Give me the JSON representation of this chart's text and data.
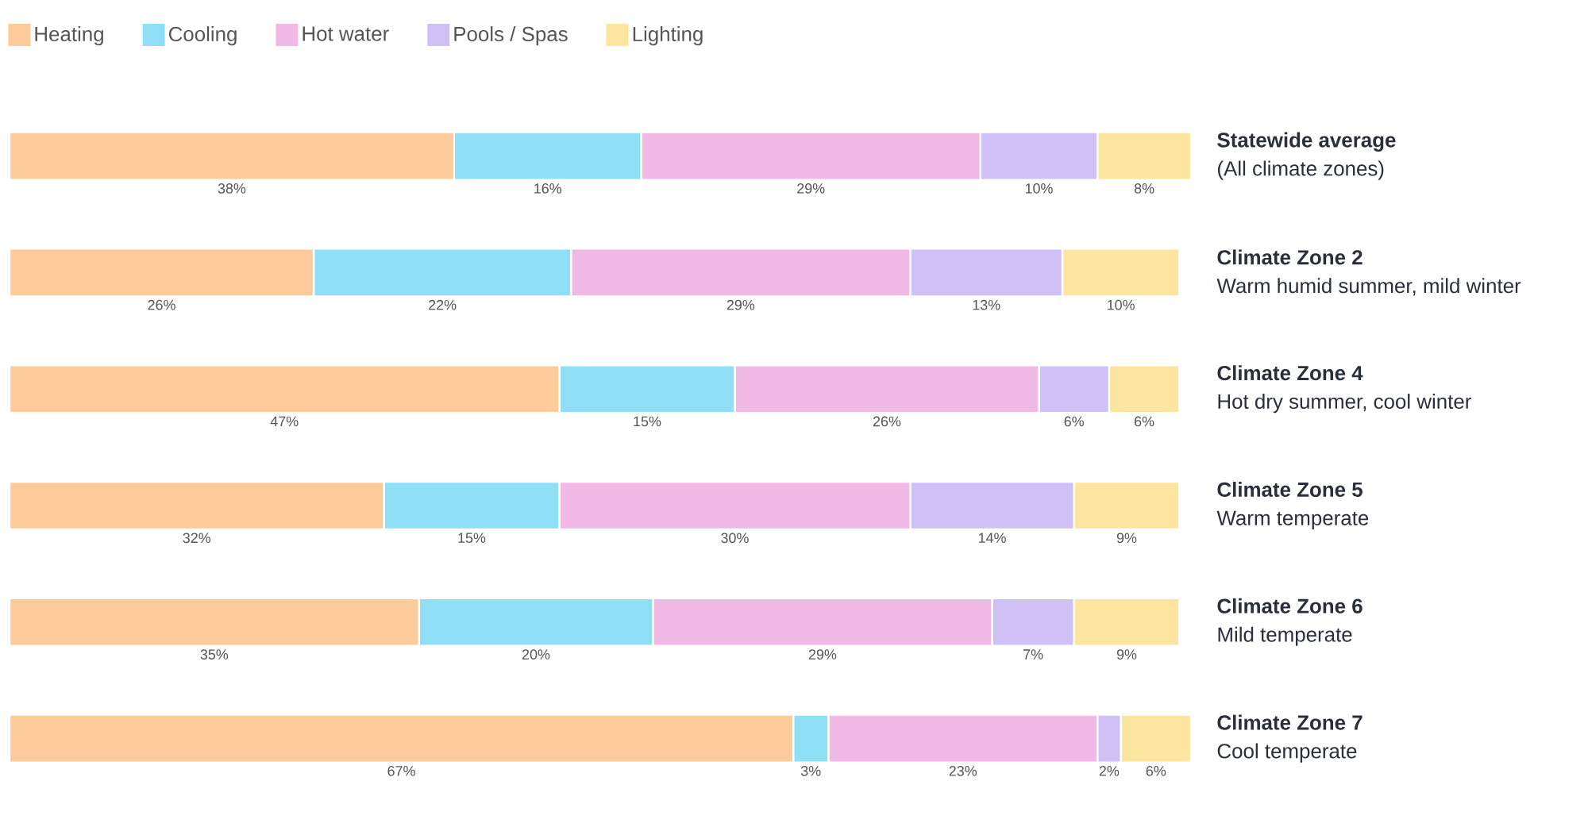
{
  "chart_data": {
    "type": "bar",
    "orientation": "horizontal",
    "stacked": true,
    "legend": "top left",
    "categories": [
      "**Statewide average**",
      "**Climate Zone 2**",
      "**Climate Zone 4**",
      "**Climate Zone 5**",
      "**Climate Zone 6**",
      "**Climate Zone 7**"
    ],
    "annotations": [
      "(All climate zones)",
      "Warm humid summer, mild winter",
      "Hot dry summer, cool winter",
      "Warm temperate",
      "Mild temperate",
      "Cool temperate"
    ],
    "xlim": [
      0,
      101
    ],
    "series": [
      {
        "name": "Heating",
        "color": "#fdcb9a",
        "values": [
          38,
          26,
          47,
          32,
          35,
          67
        ],
        "value_labels": [
          "38%",
          "26%",
          "47%",
          "32%",
          "35%",
          "67%"
        ]
      },
      {
        "name": "Cooling",
        "color": "#8fdff7",
        "values": [
          16,
          22,
          15,
          15,
          20,
          3
        ],
        "value_labels": [
          "16%",
          "22%",
          "15%",
          "15%",
          "20%",
          "3%"
        ]
      },
      {
        "name": "Hot water",
        "color": "#f0b9e6",
        "values": [
          29,
          29,
          26,
          30,
          29,
          23
        ],
        "value_labels": [
          "29%",
          "29%",
          "26%",
          "30%",
          "29%",
          "23%"
        ]
      },
      {
        "name": "Pools / Spas",
        "color": "#cfc0f5",
        "values": [
          10,
          13,
          6,
          14,
          7,
          2
        ],
        "value_labels": [
          "10%",
          "13%",
          "6%",
          "14%",
          "7%",
          "2%"
        ]
      },
      {
        "name": "Lighting",
        "color": "#fce59e",
        "values": [
          8,
          10,
          6,
          9,
          9,
          6
        ],
        "value_labels": [
          "8%",
          "10%",
          "6%",
          "9%",
          "9%",
          "6%"
        ]
      }
    ]
  }
}
